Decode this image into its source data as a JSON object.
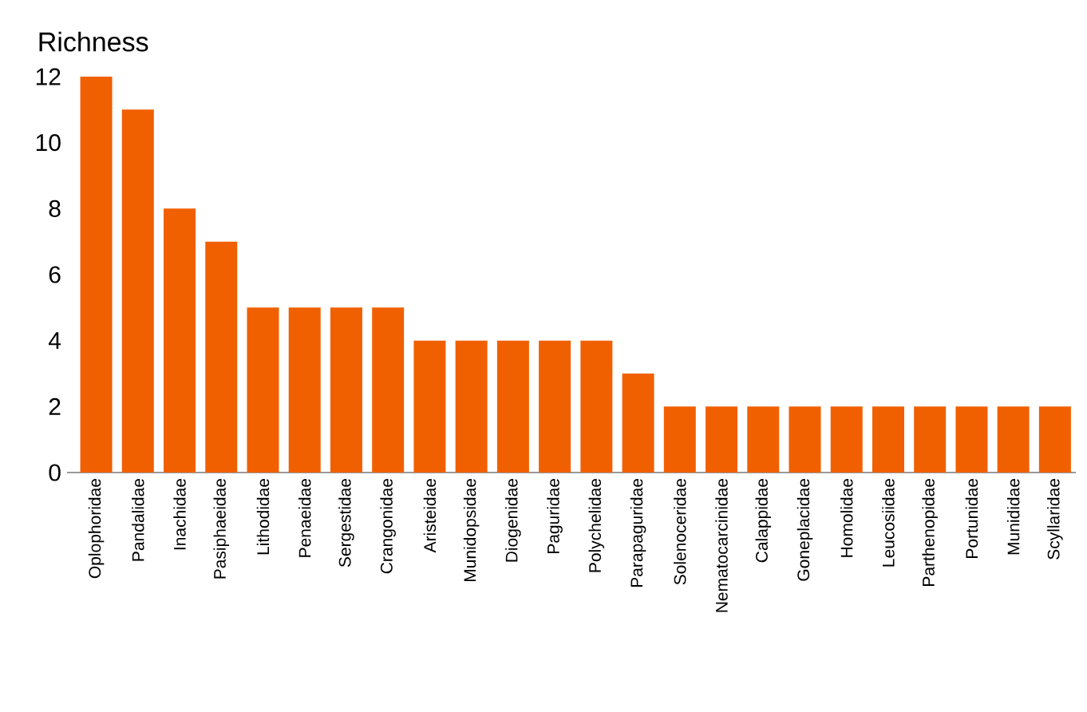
{
  "chart_data": {
    "type": "bar",
    "title": "Richness",
    "categories": [
      "Oplophoridae",
      "Pandalidae",
      "Inachidae",
      "Pasiphaeidae",
      "Lithodidae",
      "Penaeidae",
      "Sergestidae",
      "Crangonidae",
      "Aristeidae",
      "Munidopsidae",
      "Diogenidae",
      "Paguridae",
      "Polychelidae",
      "Parapaguridae",
      "Solenoceridae",
      "Nematocarcinidae",
      "Calappidae",
      "Goneplacidae",
      "Homolidae",
      "Leucosiidae",
      "Parthenopidae",
      "Portunidae",
      "Munididae",
      "Scyllaridae"
    ],
    "values": [
      12,
      11,
      8,
      7,
      5,
      5,
      5,
      5,
      4,
      4,
      4,
      4,
      4,
      3,
      2,
      2,
      2,
      2,
      2,
      2,
      2,
      2,
      2,
      2
    ],
    "color": "#f06000",
    "ylim": [
      0,
      12
    ],
    "yticks": [
      0,
      2,
      4,
      6,
      8,
      10,
      12
    ],
    "grid": false,
    "legend": false
  }
}
